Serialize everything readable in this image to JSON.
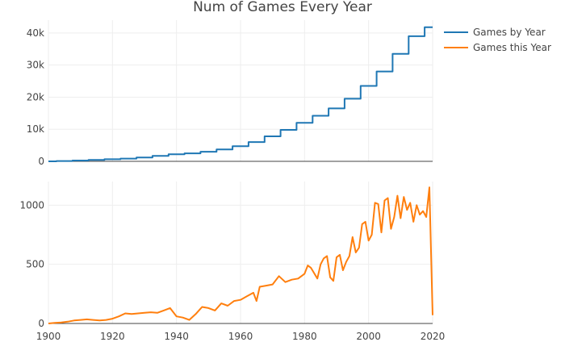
{
  "chart_data": {
    "type": "line",
    "title": "Num of Games Every Year",
    "legend_position": "top-right",
    "grid": true,
    "x_axis": {
      "range": [
        1900,
        2020
      ],
      "ticks": [
        1900,
        1920,
        1940,
        1960,
        1980,
        2000,
        2020
      ],
      "tick_labels": [
        "1900",
        "1920",
        "1940",
        "1960",
        "1980",
        "2000",
        "2020"
      ]
    },
    "panels": [
      {
        "name": "top",
        "y_range": [
          0,
          44000
        ],
        "y_ticks": [
          0,
          10000,
          20000,
          30000,
          40000
        ],
        "y_tick_labels": [
          "0",
          "10k",
          "20k",
          "30k",
          "40k"
        ],
        "series_index": 0
      },
      {
        "name": "bottom",
        "y_range": [
          0,
          1200
        ],
        "y_ticks": [
          0,
          500,
          1000
        ],
        "y_tick_labels": [
          "0",
          "500",
          "1000"
        ],
        "series_index": 1
      }
    ],
    "series": [
      {
        "name": "Games by Year",
        "color": "#1f77b4",
        "line_shape": "step",
        "x": [
          1900,
          1905,
          1910,
          1915,
          1920,
          1925,
          1930,
          1935,
          1940,
          1945,
          1950,
          1955,
          1960,
          1965,
          1970,
          1975,
          1980,
          1985,
          1990,
          1995,
          2000,
          2005,
          2010,
          2015,
          2020
        ],
        "values": [
          0,
          100,
          250,
          450,
          650,
          850,
          1200,
          1700,
          2200,
          2500,
          3000,
          3700,
          4700,
          6000,
          7800,
          9800,
          12000,
          14200,
          16500,
          19500,
          23500,
          28000,
          33500,
          39000,
          41800
        ]
      },
      {
        "name": "Games this Year",
        "color": "#ff7f0e",
        "line_shape": "linear",
        "x": [
          1900,
          1902,
          1904,
          1906,
          1908,
          1910,
          1912,
          1914,
          1916,
          1918,
          1920,
          1922,
          1924,
          1926,
          1928,
          1930,
          1932,
          1934,
          1936,
          1938,
          1940,
          1942,
          1944,
          1946,
          1948,
          1950,
          1952,
          1954,
          1956,
          1958,
          1960,
          1962,
          1964,
          1965,
          1966,
          1968,
          1970,
          1972,
          1974,
          1976,
          1978,
          1980,
          1981,
          1982,
          1984,
          1985,
          1986,
          1987,
          1988,
          1989,
          1990,
          1991,
          1992,
          1993,
          1994,
          1995,
          1996,
          1997,
          1998,
          1999,
          2000,
          2001,
          2002,
          2003,
          2004,
          2005,
          2006,
          2007,
          2008,
          2009,
          2010,
          2011,
          2012,
          2013,
          2014,
          2015,
          2016,
          2017,
          2018,
          2019,
          2020
        ],
        "values": [
          0,
          5,
          8,
          15,
          25,
          30,
          35,
          30,
          25,
          30,
          40,
          60,
          85,
          80,
          85,
          90,
          95,
          90,
          110,
          130,
          60,
          50,
          30,
          80,
          140,
          130,
          110,
          170,
          150,
          190,
          200,
          230,
          260,
          190,
          310,
          320,
          330,
          400,
          350,
          370,
          380,
          420,
          490,
          470,
          380,
          500,
          550,
          570,
          390,
          360,
          560,
          580,
          450,
          520,
          570,
          730,
          600,
          640,
          840,
          860,
          700,
          750,
          1020,
          1010,
          770,
          1040,
          1060,
          800,
          900,
          1080,
          890,
          1070,
          960,
          1020,
          860,
          1000,
          920,
          950,
          900,
          1150,
          70
        ]
      }
    ]
  }
}
